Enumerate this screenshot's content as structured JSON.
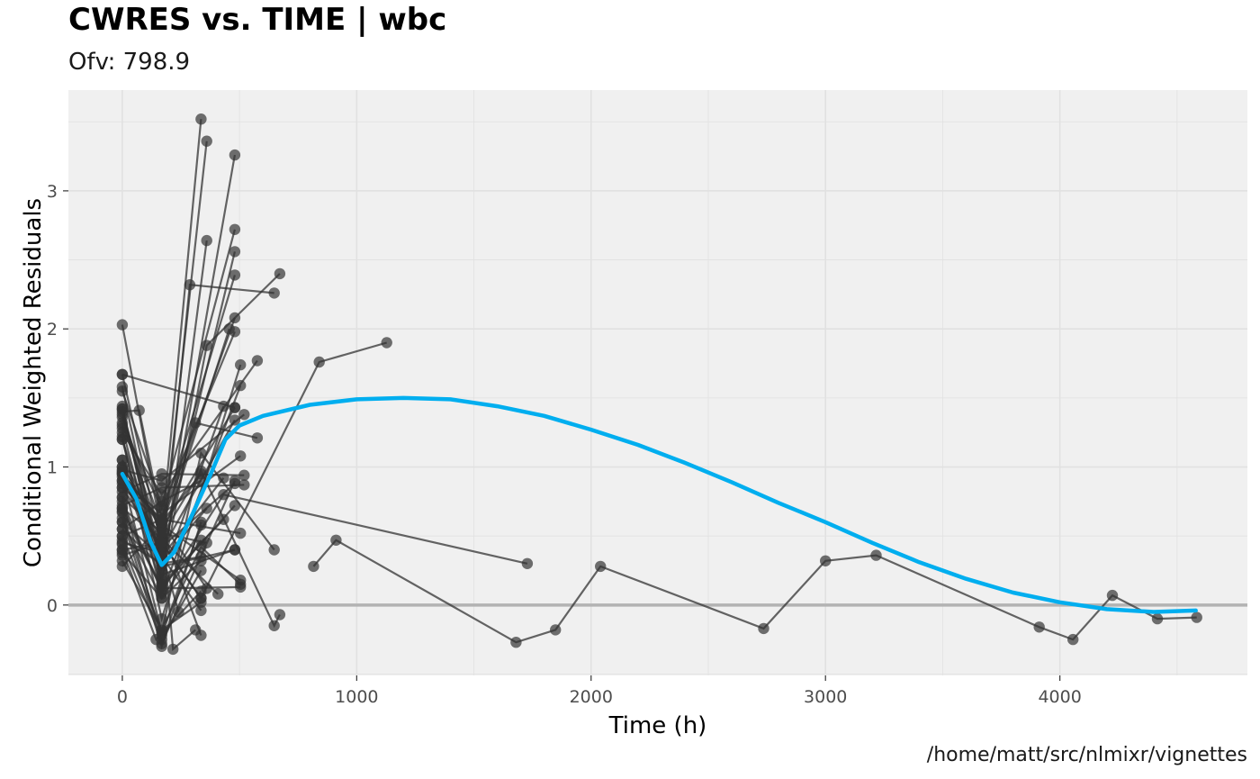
{
  "header": {
    "title": "CWRES vs. TIME | wbc",
    "subtitle": "Ofv: 798.9"
  },
  "footer": {
    "caption": "/home/matt/src/nlmixr/vignettes"
  },
  "colors": {
    "panel_background": "#f0f0f0",
    "grid": "#e1e1e1",
    "points": "#333333",
    "smooth": "#00aeef",
    "reference_line": "#b3b3b3"
  },
  "chart_data": {
    "type": "line",
    "xlabel": "Time (h)",
    "ylabel": "Conditional Weighted Residuals",
    "xlim": [
      -230,
      4800
    ],
    "ylim": [
      -0.51,
      3.73
    ],
    "x_ticks": [
      0,
      1000,
      2000,
      3000,
      4000
    ],
    "y_ticks": [
      0,
      1,
      2,
      3
    ],
    "x_tick_labels": [
      "0",
      "1000",
      "2000",
      "3000",
      "4000"
    ],
    "y_tick_labels": [
      "0",
      "1",
      "2",
      "3"
    ],
    "grid": true,
    "reference_line_y": 0,
    "series": [
      {
        "values": [
          [
            0,
            2.03
          ],
          [
            168,
            0.52
          ],
          [
            336,
            3.52
          ]
        ]
      },
      {
        "values": [
          [
            0,
            1.67
          ],
          [
            168,
            0.42
          ],
          [
            360,
            3.36
          ]
        ]
      },
      {
        "values": [
          [
            0,
            1.58
          ],
          [
            168,
            0.25
          ],
          [
            480,
            3.26
          ]
        ]
      },
      {
        "values": [
          [
            0,
            1.55
          ],
          [
            168,
            0.72
          ],
          [
            480,
            2.72
          ]
        ]
      },
      {
        "values": [
          [
            0,
            1.44
          ],
          [
            168,
            0.15
          ],
          [
            360,
            2.64
          ]
        ]
      },
      {
        "values": [
          [
            0,
            1.42
          ],
          [
            168,
            0.35
          ],
          [
            480,
            2.56
          ]
        ]
      },
      {
        "values": [
          [
            0,
            1.4
          ],
          [
            72,
            1.41
          ],
          [
            168,
            0.62
          ],
          [
            480,
            2.39
          ]
        ]
      },
      {
        "values": [
          [
            0,
            1.38
          ],
          [
            168,
            0.3
          ],
          [
            288,
            2.32
          ],
          [
            648,
            2.26
          ]
        ]
      },
      {
        "values": [
          [
            0,
            1.36
          ],
          [
            168,
            0.58
          ],
          [
            480,
            2.08
          ]
        ]
      },
      {
        "values": [
          [
            0,
            1.32
          ],
          [
            168,
            0.48
          ],
          [
            456,
            2.0
          ]
        ]
      },
      {
        "values": [
          [
            0,
            1.3
          ],
          [
            168,
            0.7
          ],
          [
            480,
            1.98
          ]
        ]
      },
      {
        "values": [
          [
            0,
            1.28
          ],
          [
            168,
            0.18
          ],
          [
            360,
            1.88
          ],
          [
            672,
            2.4
          ]
        ]
      },
      {
        "values": [
          [
            0,
            1.25
          ],
          [
            168,
            0.8
          ],
          [
            576,
            1.77
          ]
        ]
      },
      {
        "values": [
          [
            0,
            1.22
          ],
          [
            168,
            -0.1
          ],
          [
            504,
            1.74
          ]
        ]
      },
      {
        "values": [
          [
            0,
            1.2
          ],
          [
            168,
            0.08
          ],
          [
            504,
            1.59
          ]
        ]
      },
      {
        "values": [
          [
            0,
            1.05
          ],
          [
            168,
            0.55
          ],
          [
            480,
            1.43
          ]
        ]
      },
      {
        "values": [
          [
            0,
            1.0
          ],
          [
            168,
            0.2
          ],
          [
            432,
            1.44
          ]
        ]
      },
      {
        "values": [
          [
            0,
            0.98
          ],
          [
            168,
            0.9
          ],
          [
            520,
            1.38
          ]
        ]
      },
      {
        "values": [
          [
            0,
            0.96
          ],
          [
            168,
            0.4
          ],
          [
            480,
            1.34
          ]
        ]
      },
      {
        "values": [
          [
            0,
            0.95
          ],
          [
            168,
            0.6
          ],
          [
            312,
            1.32
          ],
          [
            576,
            1.21
          ]
        ]
      },
      {
        "values": [
          [
            0,
            0.93
          ],
          [
            168,
            -0.2
          ],
          [
            336,
            1.1
          ],
          [
            648,
            0.4
          ]
        ]
      },
      {
        "values": [
          [
            0,
            0.9
          ],
          [
            168,
            0.66
          ],
          [
            504,
            1.08
          ]
        ]
      },
      {
        "values": [
          [
            0,
            0.88
          ],
          [
            168,
            0.5
          ],
          [
            336,
            0.97
          ],
          [
            648,
            -0.15
          ],
          [
            672,
            -0.07
          ]
        ]
      },
      {
        "values": [
          [
            0,
            0.85
          ],
          [
            168,
            0.42
          ],
          [
            480,
            0.88
          ]
        ]
      },
      {
        "values": [
          [
            0,
            0.82
          ],
          [
            168,
            0.95
          ],
          [
            520,
            0.94
          ]
        ]
      },
      {
        "values": [
          [
            0,
            0.78
          ],
          [
            168,
            -0.28
          ],
          [
            480,
            0.9
          ]
        ]
      },
      {
        "values": [
          [
            0,
            0.75
          ],
          [
            168,
            0.1
          ],
          [
            432,
            0.8
          ],
          [
            1728,
            0.3
          ]
        ]
      },
      {
        "values": [
          [
            0,
            0.72
          ],
          [
            168,
            0.85
          ],
          [
            520,
            0.87
          ]
        ]
      },
      {
        "values": [
          [
            0,
            0.7
          ],
          [
            168,
            0.13
          ],
          [
            480,
            0.72
          ]
        ]
      },
      {
        "values": [
          [
            0,
            0.67
          ],
          [
            168,
            -0.22
          ],
          [
            336,
            0.58
          ]
        ]
      },
      {
        "values": [
          [
            0,
            0.63
          ],
          [
            168,
            -0.3
          ],
          [
            336,
            0.6
          ]
        ]
      },
      {
        "values": [
          [
            0,
            0.6
          ],
          [
            168,
            0.05
          ],
          [
            336,
            0.47
          ]
        ]
      },
      {
        "values": [
          [
            0,
            0.55
          ],
          [
            168,
            0.28
          ],
          [
            480,
            0.4
          ]
        ]
      },
      {
        "values": [
          [
            0,
            0.5
          ],
          [
            168,
            -0.18
          ],
          [
            336,
            0.42
          ],
          [
            504,
            0.15
          ]
        ]
      },
      {
        "values": [
          [
            0,
            0.47
          ],
          [
            168,
            0.3
          ],
          [
            336,
            0.35
          ]
        ]
      },
      {
        "values": [
          [
            0,
            0.44
          ],
          [
            168,
            -0.25
          ],
          [
            336,
            0.25
          ]
        ]
      },
      {
        "values": [
          [
            0,
            0.4
          ],
          [
            144,
            -0.25
          ],
          [
            336,
            0.1
          ]
        ]
      },
      {
        "values": [
          [
            0,
            0.36
          ],
          [
            168,
            0.45
          ],
          [
            336,
            0.05
          ]
        ]
      },
      {
        "values": [
          [
            0,
            0.32
          ],
          [
            168,
            -0.18
          ],
          [
            336,
            0.02
          ]
        ]
      },
      {
        "values": [
          [
            0,
            0.28
          ],
          [
            168,
            0.58
          ],
          [
            504,
            0.18
          ]
        ]
      },
      {
        "values": [
          [
            0,
            0.6
          ],
          [
            168,
            0.35
          ],
          [
            336,
            -0.04
          ]
        ]
      },
      {
        "values": [
          [
            0,
            0.85
          ],
          [
            168,
            0.6
          ],
          [
            360,
            0.12
          ]
        ]
      },
      {
        "values": [
          [
            0,
            0.5
          ],
          [
            168,
            0.62
          ],
          [
            216,
            -0.32
          ],
          [
            312,
            -0.18
          ]
        ]
      },
      {
        "values": [
          [
            0,
            0.45
          ],
          [
            168,
            0.38
          ],
          [
            240,
            -0.05
          ]
        ]
      },
      {
        "values": [
          [
            0,
            1.0
          ],
          [
            168,
            0.55
          ],
          [
            336,
            -0.22
          ]
        ]
      },
      {
        "values": [
          [
            0,
            0.7
          ],
          [
            168,
            0.48
          ],
          [
            408,
            0.08
          ]
        ]
      },
      {
        "values": [
          [
            0,
            0.55
          ],
          [
            168,
            0.75
          ],
          [
            336,
            0.9
          ]
        ]
      },
      {
        "values": [
          [
            0,
            1.42
          ],
          [
            168,
            0.22
          ],
          [
            480,
            0.4
          ]
        ]
      },
      {
        "values": [
          [
            0,
            0.68
          ],
          [
            168,
            0.12
          ],
          [
            504,
            0.13
          ]
        ]
      },
      {
        "values": [
          [
            0,
            1.05
          ],
          [
            168,
            0.35
          ],
          [
            432,
            0.92
          ]
        ]
      },
      {
        "values": [
          [
            0,
            0.95
          ],
          [
            168,
            0.6
          ],
          [
            336,
            0.95
          ]
        ]
      },
      {
        "values": [
          [
            0,
            0.78
          ],
          [
            168,
            0.52
          ],
          [
            360,
            0.45
          ]
        ]
      },
      {
        "values": [
          [
            0,
            0.97
          ],
          [
            168,
            0.15
          ],
          [
            432,
            0.62
          ]
        ]
      },
      {
        "values": [
          [
            0,
            0.38
          ],
          [
            168,
            0.05
          ],
          [
            336,
            0.32
          ]
        ]
      },
      {
        "values": [
          [
            0,
            1.2
          ],
          [
            168,
            0.32
          ],
          [
            360,
            0.7
          ]
        ]
      },
      {
        "values": [
          [
            0,
            0.9
          ],
          [
            168,
            0.62
          ],
          [
            504,
            0.52
          ]
        ]
      },
      {
        "values": [
          [
            0,
            0.4
          ],
          [
            168,
            0.45
          ],
          [
            336,
            0.05
          ],
          [
            840,
            1.76
          ],
          [
            1128,
            1.9
          ]
        ]
      },
      {
        "values": [
          [
            0,
            1.67
          ],
          [
            480,
            1.43
          ]
        ]
      },
      {
        "values": [
          [
            816,
            0.28
          ],
          [
            912,
            0.47
          ],
          [
            1680,
            -0.27
          ],
          [
            1848,
            -0.18
          ],
          [
            2040,
            0.28
          ],
          [
            2736,
            -0.17
          ],
          [
            3000,
            0.32
          ],
          [
            3216,
            0.36
          ],
          [
            3912,
            -0.16
          ],
          [
            4056,
            -0.25
          ],
          [
            4224,
            0.07
          ],
          [
            4416,
            -0.1
          ],
          [
            4584,
            -0.09
          ]
        ]
      }
    ],
    "smooth": [
      [
        0,
        0.95
      ],
      [
        60,
        0.77
      ],
      [
        120,
        0.46
      ],
      [
        168,
        0.29
      ],
      [
        220,
        0.38
      ],
      [
        300,
        0.66
      ],
      [
        380,
        0.96
      ],
      [
        440,
        1.2
      ],
      [
        500,
        1.3
      ],
      [
        600,
        1.37
      ],
      [
        800,
        1.45
      ],
      [
        1000,
        1.49
      ],
      [
        1200,
        1.5
      ],
      [
        1400,
        1.49
      ],
      [
        1600,
        1.44
      ],
      [
        1800,
        1.37
      ],
      [
        2000,
        1.27
      ],
      [
        2200,
        1.16
      ],
      [
        2400,
        1.03
      ],
      [
        2600,
        0.89
      ],
      [
        2800,
        0.74
      ],
      [
        3000,
        0.6
      ],
      [
        3200,
        0.45
      ],
      [
        3400,
        0.31
      ],
      [
        3600,
        0.19
      ],
      [
        3800,
        0.09
      ],
      [
        4000,
        0.02
      ],
      [
        4200,
        -0.03
      ],
      [
        4400,
        -0.05
      ],
      [
        4580,
        -0.04
      ]
    ]
  }
}
